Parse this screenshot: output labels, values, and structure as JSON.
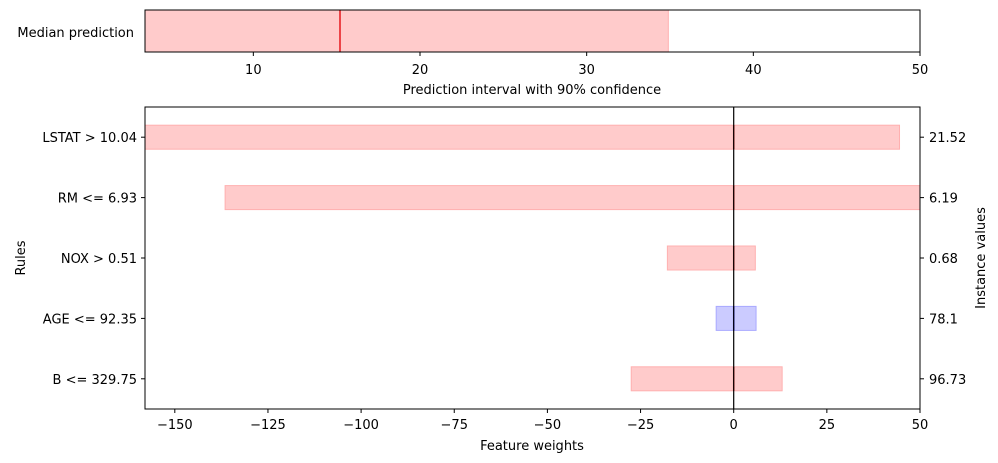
{
  "chart_data": [
    {
      "type": "bar",
      "orientation": "horizontal",
      "ylabel_text": "Median prediction",
      "xlabel": "Prediction interval with 90% confidence",
      "xlim": [
        3.5,
        50
      ],
      "xticks": [
        10,
        20,
        30,
        40,
        50
      ],
      "interval": {
        "low": 3.5,
        "high": 34.9
      },
      "median": 15.2,
      "colors": {
        "interval_fill": "#ffcbcb",
        "interval_edge": "#ffb0b0",
        "median_line": "#e6171c"
      }
    },
    {
      "type": "bar",
      "orientation": "horizontal",
      "xlabel": "Feature weights",
      "ylabel": "Rules",
      "ylabel_right": "Instance values",
      "xlim": [
        -158,
        50
      ],
      "xticks": [
        -150,
        -125,
        -100,
        -75,
        -50,
        -25,
        0,
        25,
        50
      ],
      "xtick_labels": [
        "−150",
        "−125",
        "−100",
        "−75",
        "−50",
        "−25",
        "0",
        "25",
        "50"
      ],
      "rules": [
        "LSTAT > 10.04",
        "RM <= 6.93",
        "NOX > 0.51",
        "AGE <= 92.35",
        "B <= 329.75"
      ],
      "instance_values": [
        "21.52",
        "6.19",
        "0.68",
        "78.1",
        "96.73"
      ],
      "intervals": [
        {
          "low": -158,
          "high": 44.5,
          "weight": 0,
          "color": "red"
        },
        {
          "low": -136.5,
          "high": 50,
          "weight": 0,
          "color": "red"
        },
        {
          "low": -17.8,
          "high": 5.8,
          "weight": 0,
          "color": "red"
        },
        {
          "low": -4.7,
          "high": 6.0,
          "weight": 0,
          "color": "blue"
        },
        {
          "low": -27.5,
          "high": 13.0,
          "weight": 0,
          "color": "red"
        }
      ],
      "colors": {
        "red_fill": "#ffcbcb",
        "red_edge": "#ffb0b0",
        "red_line": "#e6171c",
        "blue_fill": "#cbcbff",
        "blue_edge": "#a9a9ff",
        "blue_line": "#1c1ce6",
        "zero_line": "#000000"
      }
    }
  ]
}
